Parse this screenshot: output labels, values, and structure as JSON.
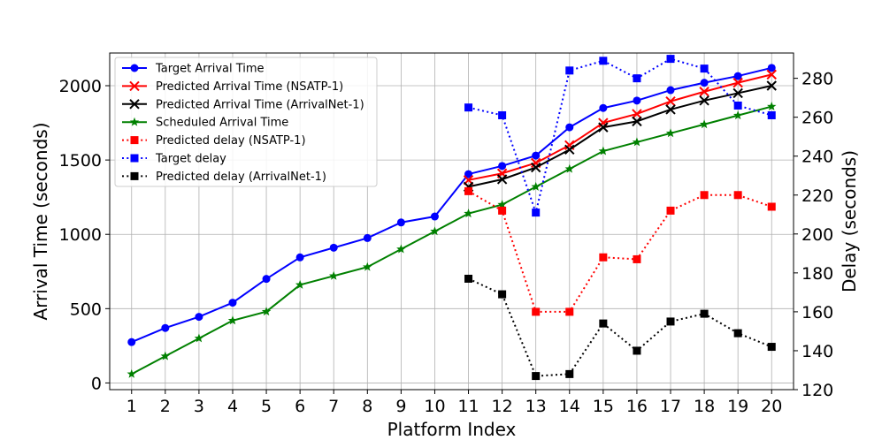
{
  "chart_data": {
    "type": "line",
    "xlabel": "Platform Index",
    "ylabel": "Arrival Time (seconds)",
    "y2label": "Delay (seconds)",
    "x": [
      1,
      2,
      3,
      4,
      5,
      6,
      7,
      8,
      9,
      10,
      11,
      12,
      13,
      14,
      15,
      16,
      17,
      18,
      19,
      20
    ],
    "xlim": [
      0.35,
      20.65
    ],
    "ylim": [
      -45,
      2220
    ],
    "y2lim": [
      120,
      293
    ],
    "yticks": [
      0,
      500,
      1000,
      1500,
      2000
    ],
    "y2ticks": [
      120,
      140,
      160,
      180,
      200,
      220,
      240,
      260,
      280
    ],
    "grid": true,
    "legend_position": "top-left",
    "series": [
      {
        "name": "Target Arrival Time",
        "axis": "left",
        "color": "#0000ff",
        "style": "solid",
        "marker": "circle",
        "x": [
          1,
          2,
          3,
          4,
          5,
          6,
          7,
          8,
          9,
          10,
          11,
          12,
          13,
          14,
          15,
          16,
          17,
          18,
          19,
          20
        ],
        "values": [
          275,
          370,
          445,
          540,
          700,
          845,
          910,
          975,
          1080,
          1120,
          1405,
          1460,
          1530,
          1720,
          1850,
          1900,
          1970,
          2020,
          2065,
          2120
        ]
      },
      {
        "name": "Predicted Arrival Time (NSATP-1)",
        "axis": "left",
        "color": "#ff0000",
        "style": "solid",
        "marker": "x",
        "x": [
          11,
          12,
          13,
          14,
          15,
          16,
          17,
          18,
          19,
          20
        ],
        "values": [
          1365,
          1410,
          1480,
          1600,
          1750,
          1810,
          1895,
          1960,
          2020,
          2075
        ]
      },
      {
        "name": "Predicted Arrival Time (ArrivalNet-1)",
        "axis": "left",
        "color": "#000000",
        "style": "solid",
        "marker": "x",
        "x": [
          11,
          12,
          13,
          14,
          15,
          16,
          17,
          18,
          19,
          20
        ],
        "values": [
          1320,
          1370,
          1450,
          1570,
          1720,
          1760,
          1840,
          1900,
          1950,
          2000
        ]
      },
      {
        "name": "Scheduled Arrival Time",
        "axis": "left",
        "color": "#008000",
        "style": "solid",
        "marker": "star",
        "x": [
          1,
          2,
          3,
          4,
          5,
          6,
          7,
          8,
          9,
          10,
          11,
          12,
          13,
          14,
          15,
          16,
          17,
          18,
          19,
          20
        ],
        "values": [
          60,
          180,
          300,
          420,
          480,
          660,
          720,
          780,
          900,
          1020,
          1140,
          1200,
          1320,
          1440,
          1560,
          1620,
          1680,
          1740,
          1800,
          1860
        ]
      },
      {
        "name": "Predicted delay (NSATP-1)",
        "axis": "right",
        "color": "#ff0000",
        "style": "dotted",
        "marker": "square",
        "x": [
          11,
          12,
          13,
          14,
          15,
          16,
          17,
          18,
          19,
          20
        ],
        "values": [
          222,
          212,
          160,
          160,
          188,
          187,
          212,
          220,
          220,
          214
        ]
      },
      {
        "name": "Target delay",
        "axis": "right",
        "color": "#0000ff",
        "style": "dotted",
        "marker": "square",
        "x": [
          11,
          12,
          13,
          14,
          15,
          16,
          17,
          18,
          19,
          20
        ],
        "values": [
          265,
          261,
          211,
          284,
          289,
          280,
          290,
          285,
          266,
          261
        ]
      },
      {
        "name": "Predicted delay (ArrivalNet-1)",
        "axis": "right",
        "color": "#000000",
        "style": "dotted",
        "marker": "square",
        "x": [
          11,
          12,
          13,
          14,
          15,
          16,
          17,
          18,
          19,
          20
        ],
        "values": [
          177,
          169,
          127,
          128,
          154,
          140,
          155,
          159,
          149,
          142
        ]
      }
    ]
  }
}
